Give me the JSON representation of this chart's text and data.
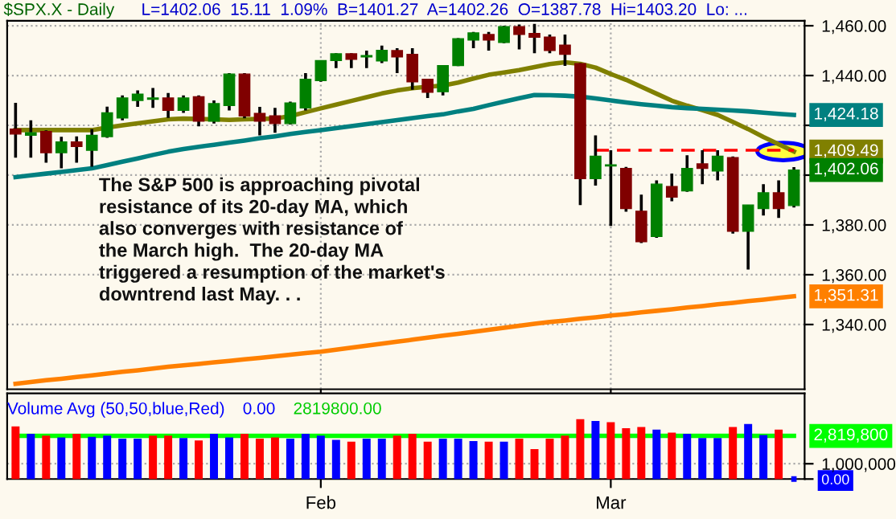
{
  "chart_data": [
    {
      "type": "candlestick",
      "title": "$SPX.X - Daily",
      "subtitle": "L=1402.06  15.11  1.09%  B=1401.27  A=1402.26  O=1387.78  Hi=1403.20  Lo: ...",
      "categories": [
        null,
        null,
        null,
        null,
        null,
        null,
        null,
        null,
        null,
        null,
        null,
        null,
        null,
        null,
        null,
        null,
        null,
        null,
        null,
        null,
        null,
        null,
        null,
        null,
        null,
        null,
        null,
        null,
        null,
        null,
        null,
        null,
        null,
        null,
        null,
        null,
        null,
        null,
        null,
        null,
        null,
        null,
        null,
        null,
        null,
        null,
        null,
        null,
        null,
        null,
        null,
        null
      ],
      "ohlc": [
        [
          1418.5,
          1429,
          1407,
          1416.5
        ],
        [
          1416,
          1422,
          1407,
          1417
        ],
        [
          1417.5,
          1418,
          1405,
          1409
        ],
        [
          1409,
          1415.4,
          1402.7,
          1413.3
        ],
        [
          1413.3,
          1415.6,
          1405,
          1411.5
        ],
        [
          1410,
          1418.5,
          1403.4,
          1416
        ],
        [
          1415.5,
          1427.5,
          1415,
          1425
        ],
        [
          1423,
          1432,
          1422,
          1431
        ],
        [
          1430,
          1434,
          1427.4,
          1432.5
        ],
        [
          1430.5,
          1435,
          1427,
          1431
        ],
        [
          1431,
          1433,
          1423,
          1426
        ],
        [
          1426,
          1432,
          1425,
          1431
        ],
        [
          1431.5,
          1432,
          1419.6,
          1421.7
        ],
        [
          1421.7,
          1430,
          1420.7,
          1428.7
        ],
        [
          1428,
          1441,
          1426,
          1440.6
        ],
        [
          1440.6,
          1441,
          1422.8,
          1423.8
        ],
        [
          1424.8,
          1427.4,
          1416,
          1421.7
        ],
        [
          1423.8,
          1427,
          1417,
          1420.7
        ],
        [
          1420.7,
          1429.5,
          1420.3,
          1429
        ],
        [
          1427,
          1441,
          1426,
          1438.5
        ],
        [
          1438,
          1446,
          1437.5,
          1446
        ],
        [
          1446,
          1449,
          1443,
          1448.7
        ],
        [
          1448.7,
          1449,
          1443,
          1446.5
        ],
        [
          1447.5,
          1450,
          1443,
          1448
        ],
        [
          1445.9,
          1452,
          1445,
          1450.1
        ],
        [
          1450,
          1451,
          1441,
          1447.5
        ],
        [
          1448.5,
          1451,
          1434.3,
          1437.5
        ],
        [
          1438.5,
          1438.5,
          1431,
          1433.3
        ],
        [
          1433.5,
          1444,
          1432,
          1444
        ],
        [
          1444,
          1455,
          1443.8,
          1454.8
        ],
        [
          1454.3,
          1457.5,
          1451,
          1457.1
        ],
        [
          1456.5,
          1457.5,
          1450,
          1454.3
        ],
        [
          1453.3,
          1460,
          1453,
          1459.6
        ],
        [
          1459.6,
          1460.5,
          1450.5,
          1456.5
        ],
        [
          1456.9,
          1460.7,
          1449,
          1455.4
        ],
        [
          1455.4,
          1456.5,
          1449,
          1450.1
        ],
        [
          1452.2,
          1456.5,
          1443.9,
          1448.5
        ],
        [
          1444.8,
          1445,
          1388,
          1398.6
        ],
        [
          1398.6,
          1416,
          1395.8,
          1407.6
        ],
        [
          1403.7,
          1410,
          1379.6,
          1404.1
        ],
        [
          1402.7,
          1403.3,
          1385.3,
          1386.6
        ],
        [
          1385.5,
          1392.2,
          1372.7,
          1373.3
        ],
        [
          1375.4,
          1397.9,
          1374.8,
          1396.4
        ],
        [
          1395.4,
          1400.6,
          1389.5,
          1391.2
        ],
        [
          1393.7,
          1408,
          1393.3,
          1402.7
        ],
        [
          1404.5,
          1410,
          1396.4,
          1402.7
        ],
        [
          1401.7,
          1410,
          1397.9,
          1407.6
        ],
        [
          1407,
          1407.5,
          1376.5,
          1377.5
        ],
        [
          1377.5,
          1388,
          1362.1,
          1388
        ],
        [
          1386.6,
          1396.4,
          1383.8,
          1392.9
        ],
        [
          1392.9,
          1397.9,
          1382.8,
          1386.6
        ],
        [
          1387.78,
          1403.2,
          1387,
          1402.06
        ]
      ],
      "colors": [
        "#800000",
        "#008000",
        "#800000",
        "#008000",
        "#800000",
        "#008000",
        "#008000",
        "#008000",
        "#008000",
        "#008000",
        "#800000",
        "#008000",
        "#800000",
        "#008000",
        "#008000",
        "#800000",
        "#800000",
        "#800000",
        "#008000",
        "#008000",
        "#008000",
        "#008000",
        "#800000",
        "#008000",
        "#008000",
        "#800000",
        "#800000",
        "#800000",
        "#008000",
        "#008000",
        "#008000",
        "#800000",
        "#008000",
        "#800000",
        "#800000",
        "#800000",
        "#800000",
        "#800000",
        "#008000",
        "#008000",
        "#800000",
        "#800000",
        "#008000",
        "#800000",
        "#008000",
        "#800000",
        "#008000",
        "#800000",
        "#008000",
        "#008000",
        "#800000",
        "#008000"
      ],
      "value_labels": [
        null,
        null,
        null,
        null,
        null,
        null,
        null,
        null,
        null,
        null,
        null,
        null,
        null,
        null,
        null,
        null,
        null,
        null,
        null,
        null,
        null,
        null,
        null,
        null,
        null,
        null,
        null,
        null,
        null,
        null,
        null,
        null,
        null,
        null,
        null,
        null,
        null,
        null,
        null,
        null,
        null,
        null,
        null,
        null,
        null,
        null,
        null,
        null,
        null,
        null,
        null,
        "1,402.06"
      ],
      "series": [
        {
          "type": "line",
          "color": "#808000",
          "values": [
            1418.1,
            1418.1,
            1418.1,
            1418.1,
            1418.1,
            1418.1,
            1419.1,
            1420.0,
            1420.8,
            1421.6,
            1422.4,
            1422.7,
            1422.6,
            1422.4,
            1422.2,
            1422.4,
            1422.6,
            1422.7,
            1423.7,
            1425.3,
            1426.8,
            1428.3,
            1429.8,
            1431.3,
            1432.8,
            1434.0,
            1434.9,
            1435.5,
            1436.0,
            1437.2,
            1438.8,
            1440.3,
            1441.2,
            1442.2,
            1443.4,
            1444.6,
            1445.3,
            1444.7,
            1443.2,
            1440.6,
            1438.3,
            1435.5,
            1432.7,
            1429.9,
            1427.9,
            1426.1,
            1424.2,
            1421.4,
            1418.5,
            1415.3,
            1412.4,
            1409.49
          ],
          "value_labels": [
            null,
            null,
            null,
            null,
            null,
            null,
            null,
            null,
            null,
            null,
            null,
            null,
            null,
            null,
            null,
            null,
            null,
            null,
            null,
            null,
            null,
            null,
            null,
            null,
            null,
            null,
            null,
            null,
            null,
            null,
            null,
            null,
            null,
            null,
            null,
            null,
            null,
            null,
            null,
            null,
            null,
            null,
            null,
            null,
            null,
            null,
            null,
            null,
            null,
            null,
            null,
            "1,409.49"
          ]
        },
        {
          "type": "line",
          "color": "#008080",
          "values": [
            1399.2,
            1399.9,
            1400.6,
            1401.3,
            1402.0,
            1402.7,
            1404.0,
            1405.4,
            1406.7,
            1408.1,
            1409.4,
            1410.5,
            1411.4,
            1412.2,
            1413.1,
            1413.9,
            1414.8,
            1415.6,
            1416.5,
            1417.3,
            1418.1,
            1418.9,
            1419.7,
            1420.5,
            1421.3,
            1422.1,
            1422.9,
            1423.7,
            1424.4,
            1425.6,
            1426.6,
            1428.1,
            1429.5,
            1430.9,
            1432.2,
            1432.1,
            1431.9,
            1431.5,
            1430.8,
            1430.0,
            1429.2,
            1428.5,
            1427.9,
            1427.3,
            1426.9,
            1426.6,
            1426.3,
            1426.0,
            1425.6,
            1425.1,
            1424.6,
            1424.18
          ],
          "value_labels": [
            null,
            null,
            null,
            null,
            null,
            null,
            null,
            null,
            null,
            null,
            null,
            null,
            null,
            null,
            null,
            null,
            null,
            null,
            null,
            null,
            null,
            null,
            null,
            null,
            null,
            null,
            null,
            null,
            null,
            null,
            null,
            null,
            null,
            null,
            null,
            null,
            null,
            null,
            null,
            null,
            null,
            null,
            null,
            null,
            null,
            null,
            null,
            null,
            null,
            null,
            null,
            "1,424.18"
          ]
        },
        {
          "type": "line",
          "color": "#ff8000",
          "values": [
            1316.2,
            1316.9,
            1317.6,
            1318.2,
            1318.9,
            1319.6,
            1320.3,
            1321.0,
            1321.6,
            1322.3,
            1323.0,
            1323.6,
            1324.2,
            1324.8,
            1325.4,
            1326.0,
            1326.6,
            1327.2,
            1327.9,
            1328.5,
            1329.1,
            1329.9,
            1330.7,
            1331.5,
            1332.3,
            1333.1,
            1333.9,
            1334.7,
            1335.5,
            1336.3,
            1337.1,
            1337.9,
            1338.7,
            1339.5,
            1340.3,
            1341.0,
            1341.6,
            1342.3,
            1342.9,
            1343.6,
            1344.2,
            1344.9,
            1345.5,
            1346.1,
            1346.8,
            1347.4,
            1348.1,
            1348.7,
            1349.4,
            1350.0,
            1350.7,
            1351.31
          ],
          "value_labels": [
            null,
            null,
            null,
            null,
            null,
            null,
            null,
            null,
            null,
            null,
            null,
            null,
            null,
            null,
            null,
            null,
            null,
            null,
            null,
            null,
            null,
            null,
            null,
            null,
            null,
            null,
            null,
            null,
            null,
            null,
            null,
            null,
            null,
            null,
            null,
            null,
            null,
            null,
            null,
            null,
            null,
            null,
            null,
            null,
            null,
            null,
            null,
            null,
            null,
            null,
            null,
            "1,351.31"
          ]
        },
        {
          "type": "line",
          "color": "#ff0000",
          "line_style": "dashed",
          "values": [
            null,
            null,
            null,
            null,
            null,
            null,
            null,
            null,
            null,
            null,
            null,
            null,
            null,
            null,
            null,
            null,
            null,
            null,
            null,
            null,
            null,
            null,
            null,
            null,
            null,
            null,
            null,
            null,
            null,
            null,
            null,
            null,
            null,
            null,
            null,
            null,
            null,
            null,
            1410,
            1410,
            1410,
            1410,
            1410,
            1410,
            1410,
            1410,
            1410,
            1410,
            1410,
            1410,
            1410,
            1410
          ]
        }
      ],
      "annotations": [
        "The S&P 500 is approaching pivotal\nresistance of its 20-day MA, which\nalso converges with resistance of\nthe March high.  The 20-day MA\ntriggered a resumption of the market's\ndowntrend last May. . ."
      ],
      "ylim": [
        1314,
        1462
      ],
      "yticks": [
        {
          "value": 1340,
          "label": "1,340.00"
        },
        {
          "value": 1360,
          "label": "1,360.00"
        },
        {
          "value": 1380,
          "label": "1,380.00"
        },
        {
          "value": 1400,
          "label": null
        },
        {
          "value": 1420,
          "label": null
        },
        {
          "value": 1440,
          "label": "1,440.00"
        },
        {
          "value": 1460,
          "label": "1,460.00"
        }
      ],
      "grid": true,
      "tick_labels": "y"
    },
    {
      "type": "bar",
      "title": "Volume Avg (50,50,blue,Red)",
      "annotations": [
        "0.00",
        "2819800.00"
      ],
      "categories": [
        null,
        null,
        null,
        null,
        null,
        null,
        null,
        null,
        null,
        null,
        null,
        null,
        null,
        null,
        null,
        null,
        null,
        null,
        null,
        null,
        "Feb",
        null,
        null,
        null,
        null,
        null,
        null,
        null,
        null,
        null,
        null,
        null,
        null,
        null,
        null,
        null,
        null,
        null,
        null,
        "Mar",
        null,
        null,
        null,
        null,
        null,
        null,
        null,
        null,
        null,
        null,
        null,
        null
      ],
      "series": [
        {
          "type": "bar",
          "colors": [
            "#ff0000",
            "#0000ff",
            "#ff0000",
            "#0000ff",
            "#ff0000",
            "#0000ff",
            "#0000ff",
            "#0000ff",
            "#0000ff",
            "#ff0000",
            "#ff0000",
            "#0000ff",
            "#ff0000",
            "#0000ff",
            "#0000ff",
            "#ff0000",
            "#ff0000",
            "#ff0000",
            "#0000ff",
            "#0000ff",
            "#0000ff",
            "#0000ff",
            "#ff0000",
            "#0000ff",
            "#0000ff",
            "#ff0000",
            "#ff0000",
            "#ff0000",
            "#0000ff",
            "#0000ff",
            "#0000ff",
            "#ff0000",
            "#0000ff",
            "#ff0000",
            "#ff0000",
            "#ff0000",
            "#ff0000",
            "#ff0000",
            "#0000ff",
            "#ff0000",
            "#ff0000",
            "#ff0000",
            "#0000ff",
            "#ff0000",
            "#0000ff",
            "#0000ff",
            "#0000ff",
            "#ff0000",
            "#0000ff",
            "#0000ff",
            "#ff0000",
            "#0000ff"
          ],
          "values": [
            3350000,
            2870000,
            2750000,
            2630000,
            2870000,
            2670000,
            2750000,
            2550000,
            2550000,
            2750000,
            2750000,
            2590000,
            2430000,
            2870000,
            2630000,
            2870000,
            2550000,
            2630000,
            2550000,
            2870000,
            2750000,
            2470000,
            2350000,
            2550000,
            2550000,
            2750000,
            2870000,
            2350000,
            2550000,
            2550000,
            2390000,
            2350000,
            2350000,
            2550000,
            1870000,
            2550000,
            2750000,
            3830000,
            3710000,
            3630000,
            3230000,
            3310000,
            3150000,
            2950000,
            2870000,
            2590000,
            2590000,
            3310000,
            3510000,
            2790000,
            3150000,
            0
          ],
          "value_labels": [
            null,
            null,
            null,
            null,
            null,
            null,
            null,
            null,
            null,
            null,
            null,
            null,
            null,
            null,
            null,
            null,
            null,
            null,
            null,
            null,
            null,
            null,
            null,
            null,
            null,
            null,
            null,
            null,
            null,
            null,
            null,
            null,
            null,
            null,
            null,
            null,
            null,
            null,
            null,
            null,
            null,
            null,
            null,
            null,
            null,
            null,
            null,
            null,
            null,
            null,
            null,
            null
          ]
        },
        {
          "type": "line",
          "color": "#00ff00",
          "values": [
            2819800,
            2819800,
            2819800,
            2819800,
            2819800,
            2819800,
            2819800,
            2819800,
            2819800,
            2819800,
            2819800,
            2819800,
            2819800,
            2819800,
            2819800,
            2819800,
            2819800,
            2819800,
            2819800,
            2819800,
            2819800,
            2819800,
            2819800,
            2819800,
            2819800,
            2819800,
            2819800,
            2819800,
            2819800,
            2819800,
            2819800,
            2819800,
            2819800,
            2819800,
            2819800,
            2819800,
            2819800,
            2819800,
            2819800,
            2819800,
            2819800,
            2819800,
            2819800,
            2819800,
            2819800,
            2819800,
            2819800,
            2819800,
            2819800,
            2819800,
            2819800,
            2819800
          ],
          "value_labels": [
            null,
            null,
            null,
            null,
            null,
            null,
            null,
            null,
            null,
            null,
            null,
            null,
            null,
            null,
            null,
            null,
            null,
            null,
            null,
            null,
            null,
            null,
            null,
            null,
            null,
            null,
            null,
            null,
            null,
            null,
            null,
            null,
            null,
            null,
            null,
            null,
            null,
            null,
            null,
            null,
            null,
            null,
            null,
            null,
            null,
            null,
            null,
            null,
            null,
            null,
            null,
            "2,819,800"
          ]
        }
      ],
      "ylim": [
        0,
        5600000
      ],
      "yticks": [
        {
          "value": 0,
          "label": "0.00"
        },
        {
          "value": 1000000,
          "label": "1,000,000"
        }
      ],
      "grid": "y"
    }
  ]
}
